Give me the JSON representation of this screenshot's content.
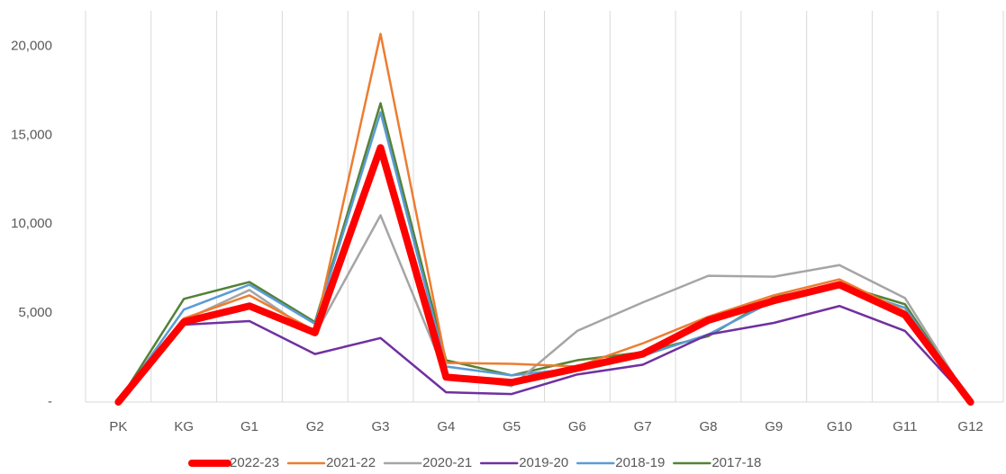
{
  "chart_data": {
    "type": "line",
    "categories": [
      "PK",
      "KG",
      "G1",
      "G2",
      "G3",
      "G4",
      "G5",
      "G6",
      "G7",
      "G8",
      "G9",
      "G10",
      "G11",
      "G12"
    ],
    "series": [
      {
        "name": "2022-23",
        "color": "#ff0000",
        "line_width": 8,
        "values": [
          0,
          4500,
          5400,
          3900,
          14300,
          1400,
          1100,
          1900,
          2700,
          4600,
          5700,
          6600,
          4900,
          0
        ]
      },
      {
        "name": "2021-22",
        "color": "#ed7d31",
        "line_width": 2.5,
        "values": [
          0,
          4700,
          6000,
          4000,
          20700,
          2200,
          2150,
          2000,
          3300,
          4800,
          6000,
          6900,
          5100,
          0
        ]
      },
      {
        "name": "2020-21",
        "color": "#a5a5a5",
        "line_width": 2.5,
        "values": [
          0,
          4600,
          6300,
          3800,
          10500,
          1500,
          900,
          4000,
          5600,
          7100,
          7050,
          7700,
          5850,
          0
        ]
      },
      {
        "name": "2019-20",
        "color": "#7030a0",
        "line_width": 2.5,
        "values": [
          0,
          4350,
          4550,
          2700,
          3600,
          550,
          450,
          1550,
          2100,
          3800,
          4450,
          5400,
          4000,
          0
        ]
      },
      {
        "name": "2018-19",
        "color": "#5b9bd5",
        "line_width": 2.5,
        "values": [
          0,
          5200,
          6600,
          4400,
          16300,
          2000,
          1500,
          1900,
          2600,
          3800,
          5700,
          6500,
          5300,
          0
        ]
      },
      {
        "name": "2017-18",
        "color": "#548235",
        "line_width": 2.5,
        "values": [
          0,
          5800,
          6750,
          4500,
          16800,
          2350,
          1500,
          2350,
          2800,
          3700,
          5900,
          6600,
          5500,
          0
        ]
      }
    ],
    "ylim": [
      0,
      22000
    ],
    "yticks": [
      {
        "value": 0,
        "label": "-"
      },
      {
        "value": 5000,
        "label": "5,000"
      },
      {
        "value": 10000,
        "label": "10,000"
      },
      {
        "value": 15000,
        "label": "15,000"
      },
      {
        "value": 20000,
        "label": "20,000"
      }
    ],
    "grid": "vertical",
    "legend": "bottom"
  }
}
